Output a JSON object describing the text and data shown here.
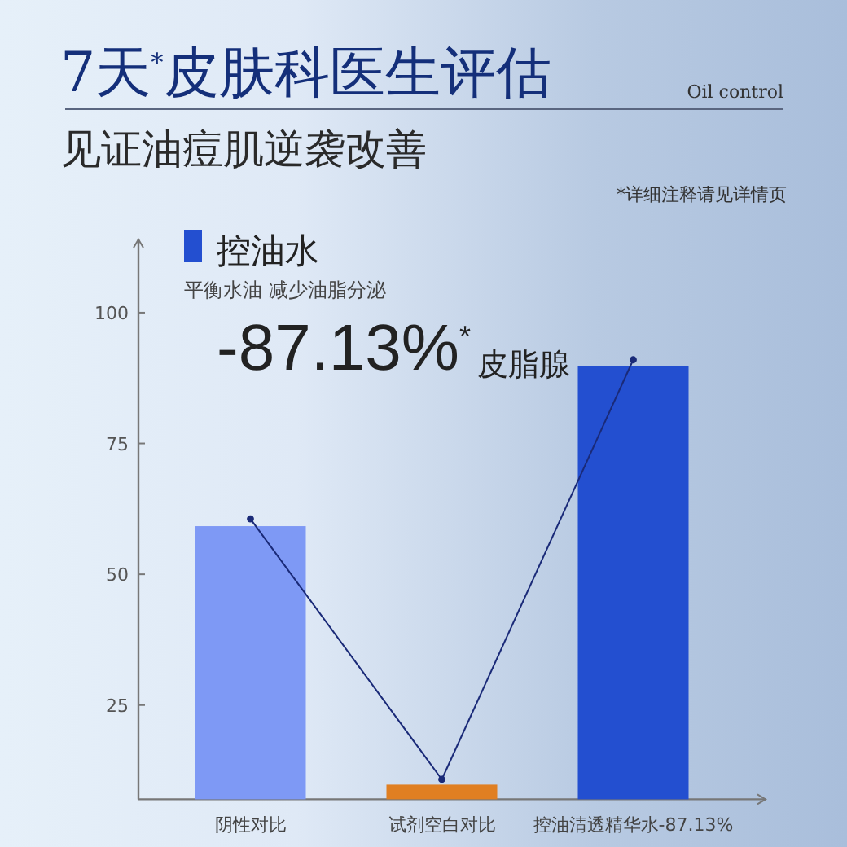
{
  "chart_data": {
    "type": "bar",
    "title": "7天$^{*}$皮肤科医生评估",
    "subtitle": "见证油痘肌逆袭改善",
    "categories": [
      "阴性对比",
      "试剂空白对比",
      "控油清透精华水-87.13%"
    ],
    "series": [
      {
        "colors": [
          "#7e99f5",
          "#e07f22",
          "#234fd0"
        ],
        "values": [
          59.2,
          9.8,
          89.8
        ]
      },
      {
        "type": "line",
        "color": "#1a2a78",
        "values": [
          60.6,
          10.8,
          91
        ]
      }
    ],
    "marker": "circle",
    "ylim": [
      7,
      114
    ],
    "yticks": [
      25,
      50,
      75,
      100
    ],
    "annotations": [
      "Oil control",
      "*详细注释请见详情页",
      "控油水",
      "平衡水油 减少油脂分泌",
      "-87.13%$^{*}$",
      "皮脂腺"
    ]
  }
}
